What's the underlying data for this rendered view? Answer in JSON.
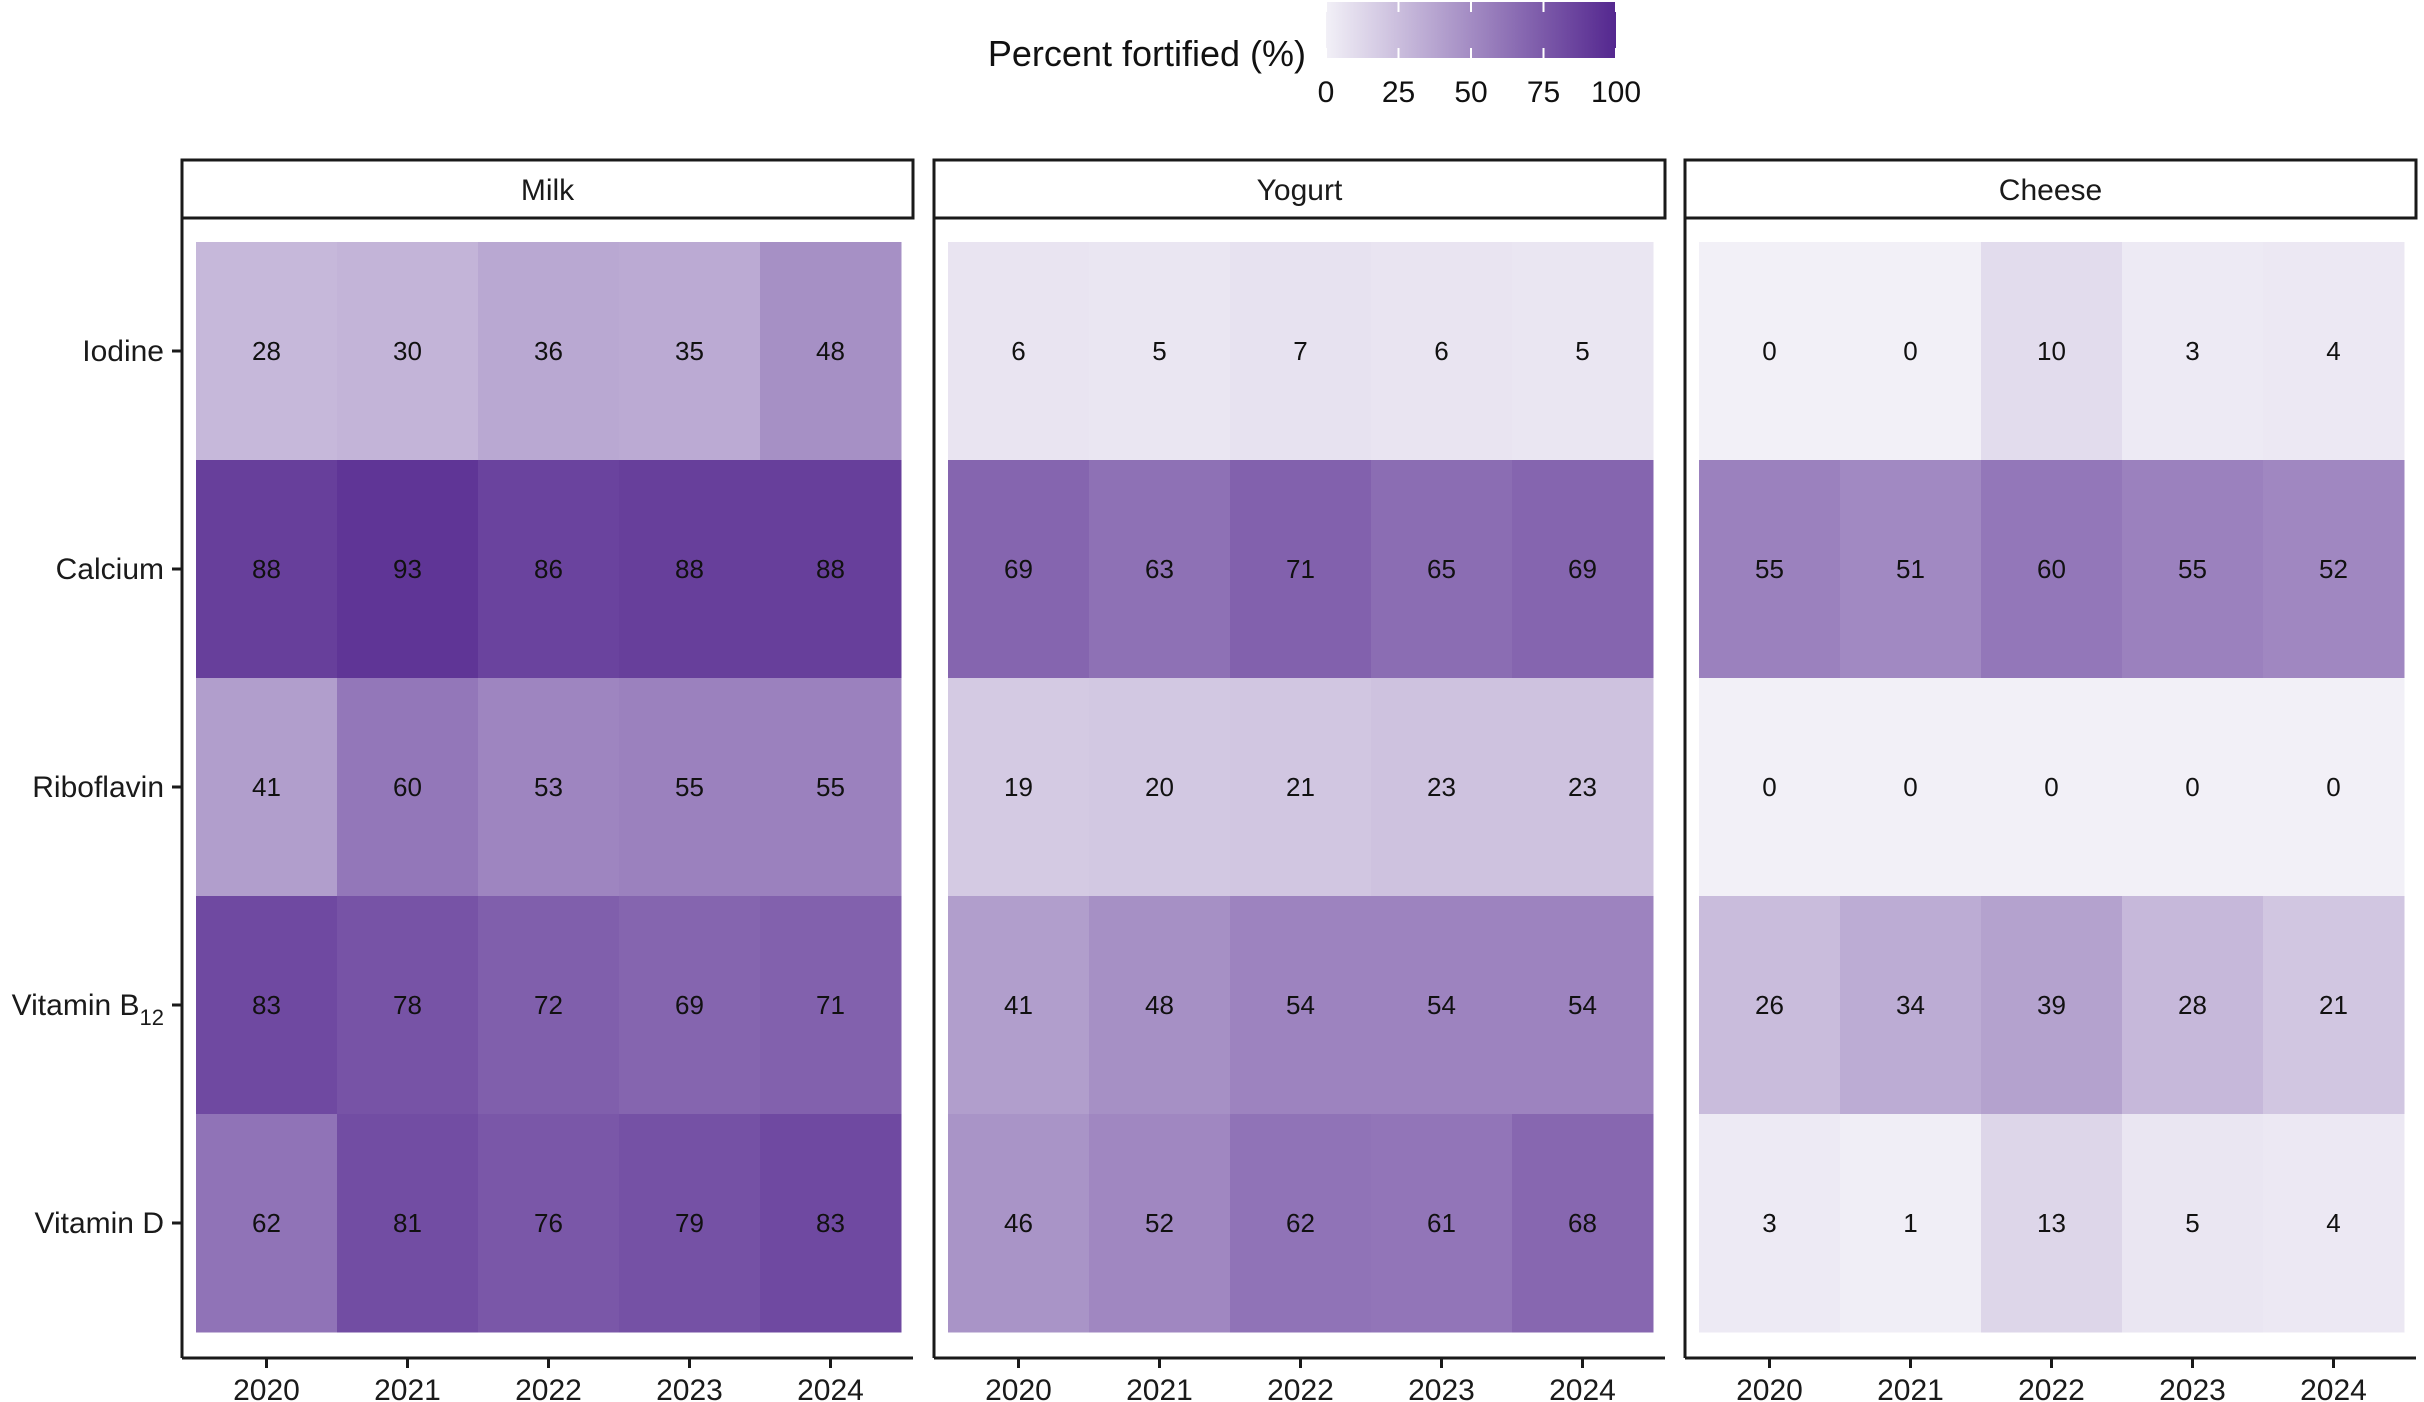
{
  "chart_data": {
    "type": "heatmap",
    "legend": {
      "title": "Percent fortified (%)",
      "ticks": [
        0,
        25,
        50,
        75,
        100
      ],
      "range": [
        0,
        100
      ],
      "color_low": "#f2f0f7",
      "color_high": "#54278f",
      "placement": "top"
    },
    "panels": [
      "Milk",
      "Yogurt",
      "Cheese"
    ],
    "rows": [
      {
        "label": "Iodine"
      },
      {
        "label": "Calcium"
      },
      {
        "label": "Riboflavin"
      },
      {
        "label": "Vitamin B",
        "subscript": "12"
      },
      {
        "label": "Vitamin D"
      }
    ],
    "years": [
      "2020",
      "2021",
      "2022",
      "2023",
      "2024"
    ],
    "values": {
      "Milk": [
        [
          28,
          30,
          36,
          35,
          48
        ],
        [
          88,
          93,
          86,
          88,
          88
        ],
        [
          41,
          60,
          53,
          55,
          55
        ],
        [
          83,
          78,
          72,
          69,
          71
        ],
        [
          62,
          81,
          76,
          79,
          83
        ]
      ],
      "Yogurt": [
        [
          6,
          5,
          7,
          6,
          5
        ],
        [
          69,
          63,
          71,
          65,
          69
        ],
        [
          19,
          20,
          21,
          23,
          23
        ],
        [
          41,
          48,
          54,
          54,
          54
        ],
        [
          46,
          52,
          62,
          61,
          68
        ]
      ],
      "Cheese": [
        [
          0,
          0,
          10,
          3,
          4
        ],
        [
          55,
          51,
          60,
          55,
          52
        ],
        [
          0,
          0,
          0,
          0,
          0
        ],
        [
          26,
          34,
          39,
          28,
          21
        ],
        [
          3,
          1,
          13,
          5,
          4
        ]
      ]
    }
  }
}
